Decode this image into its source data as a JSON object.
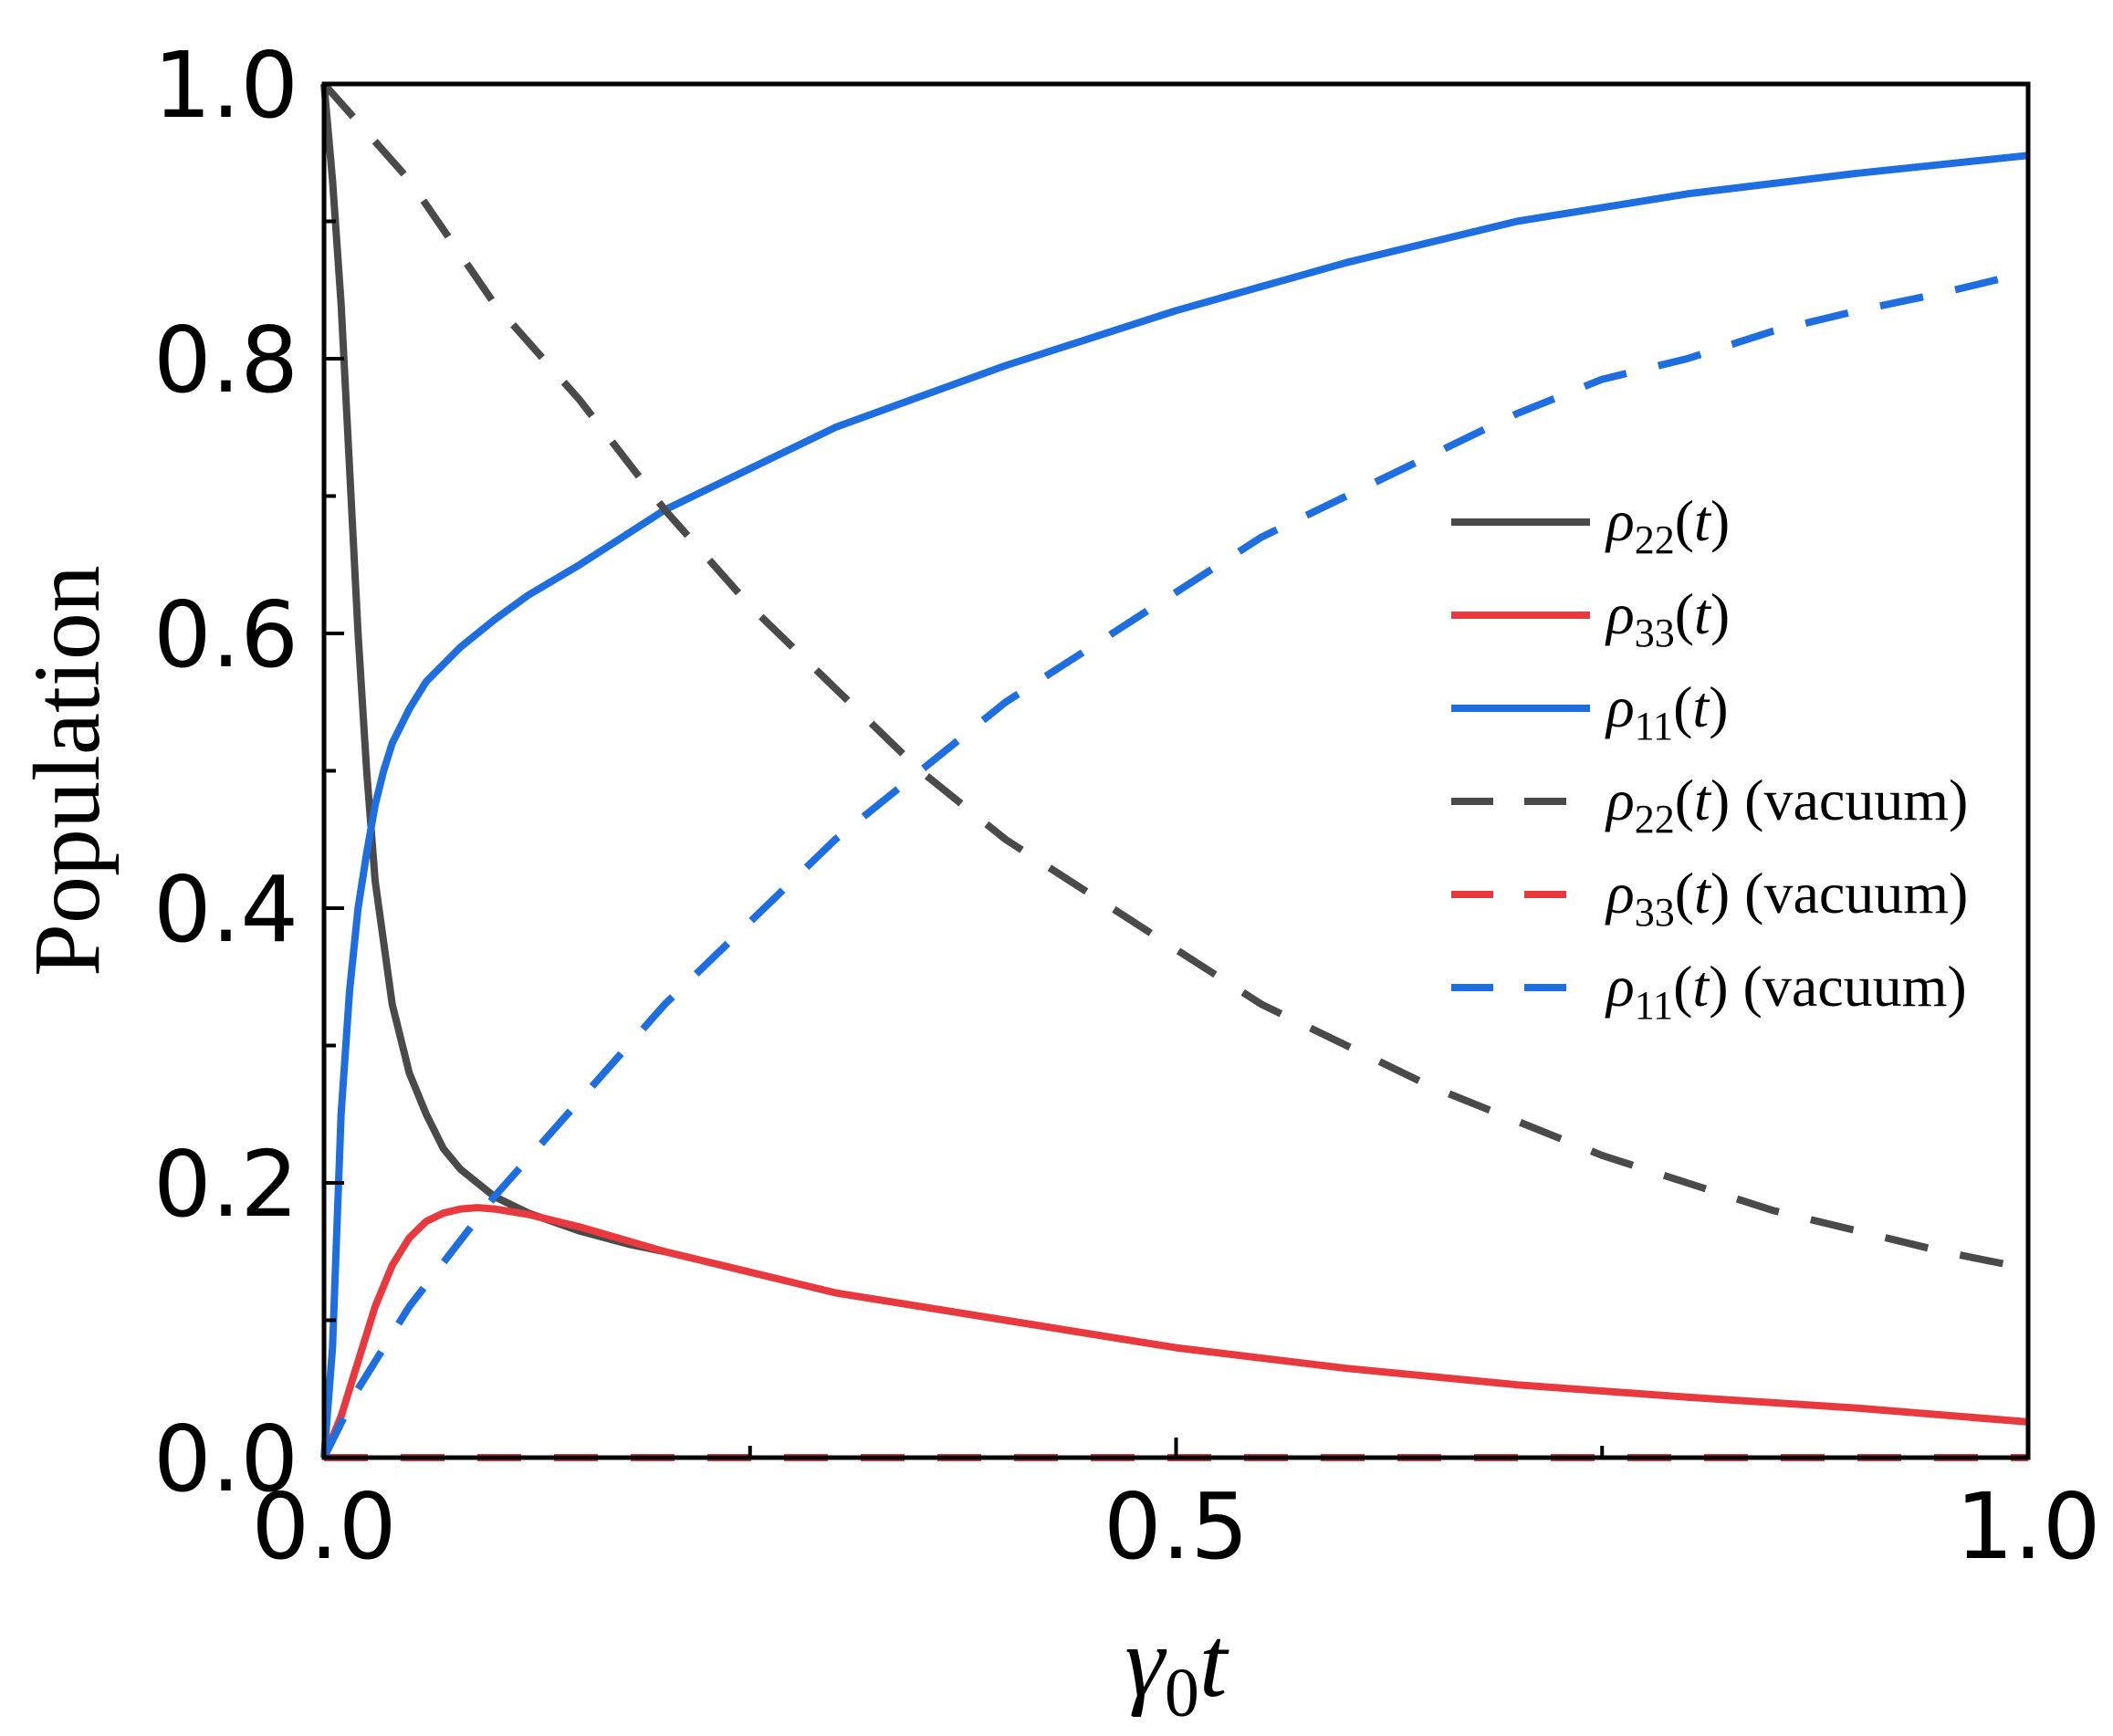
{
  "chart_data": {
    "type": "line",
    "xlabel": "γ0t",
    "xlabel_parts": {
      "main": "γ",
      "sub": "0",
      "tail": "t"
    },
    "ylabel": "Population",
    "xlim": [
      0.0,
      1.0
    ],
    "ylim": [
      0.0,
      1.0
    ],
    "x_ticks": [
      0.0,
      0.5,
      1.0
    ],
    "x_tick_labels": [
      "0.0",
      "0.5",
      "1.0"
    ],
    "x_minor_ticks": [
      0.25,
      0.75
    ],
    "y_ticks": [
      0.0,
      0.2,
      0.4,
      0.6,
      0.8,
      1.0
    ],
    "y_tick_labels": [
      "0.0",
      "0.2",
      "0.4",
      "0.6",
      "0.8",
      "1.0"
    ],
    "y_minor_ticks": [
      0.1,
      0.3,
      0.5,
      0.7,
      0.9
    ],
    "grid": false,
    "legend_position": "right",
    "series": [
      {
        "name": "ρ22(t)",
        "label_sym": "ρ",
        "label_sub": "22",
        "label_tail": "(t)",
        "color": "#4a4a4a",
        "style": "solid",
        "x": [
          0.0,
          0.005,
          0.01,
          0.015,
          0.02,
          0.025,
          0.03,
          0.04,
          0.05,
          0.06,
          0.07,
          0.08,
          0.09,
          0.1,
          0.12,
          0.15,
          0.18,
          0.2
        ],
        "y": [
          1.0,
          0.93,
          0.84,
          0.72,
          0.6,
          0.5,
          0.42,
          0.33,
          0.28,
          0.25,
          0.225,
          0.21,
          0.2,
          0.19,
          0.178,
          0.165,
          0.155,
          0.15
        ]
      },
      {
        "name": "ρ33(t)",
        "label_sym": "ρ",
        "label_sub": "33",
        "label_tail": "(t)",
        "color": "#e8393e",
        "style": "solid",
        "x": [
          0.0,
          0.01,
          0.02,
          0.03,
          0.04,
          0.05,
          0.06,
          0.07,
          0.08,
          0.09,
          0.1,
          0.12,
          0.15,
          0.2,
          0.25,
          0.3,
          0.4,
          0.5,
          0.6,
          0.7,
          0.8,
          0.9,
          1.0
        ],
        "y": [
          0.0,
          0.03,
          0.07,
          0.11,
          0.14,
          0.16,
          0.172,
          0.178,
          0.181,
          0.182,
          0.181,
          0.177,
          0.168,
          0.15,
          0.135,
          0.12,
          0.1,
          0.08,
          0.065,
          0.053,
          0.044,
          0.036,
          0.026
        ]
      },
      {
        "name": "ρ11(t)",
        "label_sym": "ρ",
        "label_sub": "11",
        "label_tail": "(t)",
        "color": "#1e6ee0",
        "style": "solid",
        "x": [
          0.0,
          0.005,
          0.01,
          0.015,
          0.02,
          0.025,
          0.03,
          0.035,
          0.04,
          0.05,
          0.06,
          0.08,
          0.1,
          0.12,
          0.15,
          0.2,
          0.25,
          0.3,
          0.4,
          0.5,
          0.6,
          0.7,
          0.8,
          0.9,
          1.0
        ],
        "y": [
          0.0,
          0.08,
          0.25,
          0.34,
          0.4,
          0.44,
          0.475,
          0.5,
          0.52,
          0.545,
          0.565,
          0.59,
          0.61,
          0.628,
          0.65,
          0.69,
          0.72,
          0.75,
          0.795,
          0.835,
          0.87,
          0.9,
          0.92,
          0.935,
          0.948
        ]
      },
      {
        "name": "ρ22(t) (vacuum)",
        "label_sym": "ρ",
        "label_sub": "22",
        "label_tail": "(t) (vacuum)",
        "color": "#4a4a4a",
        "style": "dashed",
        "x": [
          0.0,
          0.05,
          0.1,
          0.15,
          0.2,
          0.25,
          0.3,
          0.35,
          0.4,
          0.45,
          0.5,
          0.55,
          0.6,
          0.65,
          0.7,
          0.75,
          0.8,
          0.85,
          0.9,
          0.95,
          0.99
        ],
        "y": [
          1.0,
          0.93,
          0.84,
          0.77,
          0.69,
          0.62,
          0.56,
          0.5,
          0.45,
          0.41,
          0.37,
          0.33,
          0.3,
          0.27,
          0.245,
          0.22,
          0.2,
          0.18,
          0.165,
          0.15,
          0.14
        ]
      },
      {
        "name": "ρ33(t) (vacuum)",
        "label_sym": "ρ",
        "label_sub": "33",
        "label_tail": "(t) (vacuum)",
        "color": "#e8393e",
        "style": "dashed",
        "x": [
          0.0,
          1.0
        ],
        "y": [
          0.0,
          0.0
        ]
      },
      {
        "name": "ρ11(t) (vacuum)",
        "label_sym": "ρ",
        "label_sub": "11",
        "label_tail": "(t) (vacuum)",
        "color": "#1e6ee0",
        "style": "dashed",
        "x": [
          0.0,
          0.02,
          0.05,
          0.1,
          0.15,
          0.2,
          0.25,
          0.3,
          0.35,
          0.4,
          0.45,
          0.5,
          0.55,
          0.6,
          0.65,
          0.7,
          0.75,
          0.8,
          0.85,
          0.9,
          0.95,
          0.99
        ],
        "y": [
          0.0,
          0.05,
          0.11,
          0.19,
          0.26,
          0.33,
          0.39,
          0.45,
          0.5,
          0.55,
          0.59,
          0.63,
          0.67,
          0.7,
          0.73,
          0.76,
          0.785,
          0.8,
          0.82,
          0.835,
          0.848,
          0.86
        ]
      }
    ]
  }
}
